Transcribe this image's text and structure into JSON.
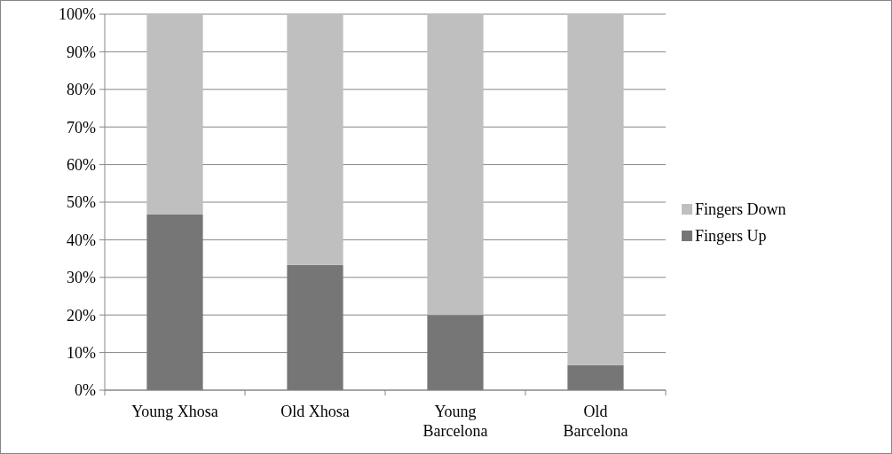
{
  "chart_data": {
    "type": "bar",
    "stacked": true,
    "categories": [
      "Young Xhosa",
      "Old Xhosa",
      "Young Barcelona",
      "Old Barcelona"
    ],
    "series": [
      {
        "name": "Fingers Up",
        "color": "#767676",
        "values": [
          46.7,
          33.3,
          20,
          6.7
        ]
      },
      {
        "name": "Fingers Down",
        "color": "#bfbfbf",
        "values": [
          53.3,
          66.7,
          80,
          93.3
        ]
      }
    ],
    "ylim": [
      0,
      100
    ],
    "yticks": [
      {
        "value": 0,
        "label": "0%"
      },
      {
        "value": 10,
        "label": "10%"
      },
      {
        "value": 20,
        "label": "20%"
      },
      {
        "value": 30,
        "label": "30%"
      },
      {
        "value": 40,
        "label": "40%"
      },
      {
        "value": 50,
        "label": "50%"
      },
      {
        "value": 60,
        "label": "60%"
      },
      {
        "value": 70,
        "label": "70%"
      },
      {
        "value": 80,
        "label": "80%"
      },
      {
        "value": 90,
        "label": "90%"
      },
      {
        "value": 100,
        "label": "100%"
      }
    ],
    "grid": "y",
    "legend": "right"
  }
}
